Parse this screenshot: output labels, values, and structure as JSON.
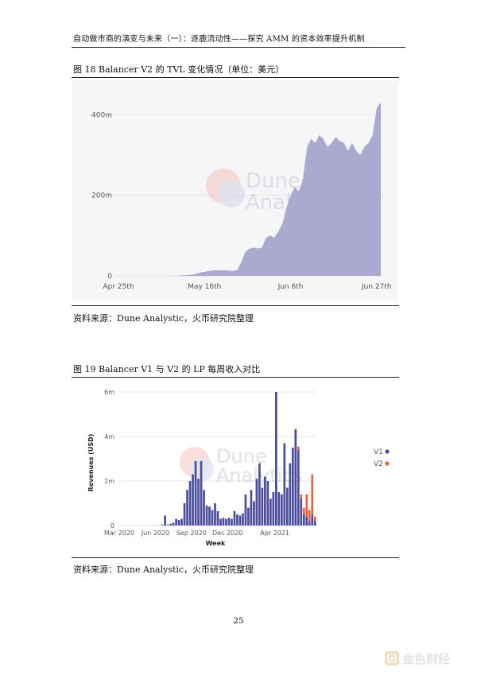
{
  "header": {
    "running_title": "自动做市商的演变与未来（一）：逐鹿流动性——探究 AMM 的资本效率提升机制"
  },
  "figure18": {
    "caption": "图  18   Balancer V2 的 TVL 变化情况（单位：美元）",
    "watermark_line1": "Dune",
    "watermark_line2": "Analytics",
    "source": "资料来源：Dune Analystic，火币研究院整理",
    "fill_color": "#a9aacd",
    "chart_data": {
      "type": "area",
      "title": "",
      "xlabel": "",
      "ylabel": "",
      "ylim": [
        0,
        450000000
      ],
      "x_tick_labels": [
        "Apr 25th",
        "May 16th",
        "Jun 6th",
        "Jun 27th"
      ],
      "x_ticks_day": [
        0,
        21,
        42,
        63
      ],
      "y_ticks": [
        0,
        200000000,
        400000000
      ],
      "y_tick_labels": [
        "0",
        "200m",
        "400m"
      ],
      "x_day": [
        0,
        8,
        14,
        18,
        20,
        22,
        24,
        26,
        28,
        29,
        30,
        31,
        32,
        33,
        34,
        35,
        36,
        37,
        38,
        39,
        40,
        41,
        42,
        43,
        44,
        45,
        46,
        47,
        48,
        49,
        50,
        51,
        52,
        53,
        54,
        55,
        56,
        57,
        58,
        59,
        60,
        61,
        62,
        63,
        63.5,
        64
      ],
      "values": [
        0,
        0,
        0,
        3000000,
        8000000,
        12000000,
        14000000,
        14000000,
        12000000,
        15000000,
        35000000,
        60000000,
        68000000,
        70000000,
        68000000,
        70000000,
        95000000,
        100000000,
        95000000,
        110000000,
        130000000,
        170000000,
        200000000,
        220000000,
        210000000,
        240000000,
        320000000,
        340000000,
        330000000,
        350000000,
        340000000,
        320000000,
        330000000,
        345000000,
        335000000,
        330000000,
        310000000,
        330000000,
        310000000,
        300000000,
        320000000,
        330000000,
        350000000,
        415000000,
        425000000,
        430000000
      ]
    }
  },
  "figure19": {
    "caption": "图  19   Balancer V1 与 V2 的 LP 每周收入对比",
    "watermark_line1": "Dune",
    "watermark_line2": "Analytics",
    "source": "资料来源：Dune Analystic，火币研究院整理",
    "legend": [
      {
        "name": "V1",
        "color": "#4a4c9c"
      },
      {
        "name": "V2",
        "color": "#e8603c"
      }
    ],
    "chart_data": {
      "type": "bar",
      "title": "",
      "xlabel": "Week",
      "ylabel": "Revenues (USD)",
      "ylim": [
        0,
        6000000
      ],
      "y_ticks": [
        0,
        2000000,
        4000000,
        6000000
      ],
      "y_tick_labels": [
        "0",
        "2m",
        "4m",
        "6m"
      ],
      "x_tick_labels": [
        "Mar 2020",
        "Jun 2020",
        "Sep 2020",
        "Dec 2020",
        "Apr 2021"
      ],
      "x_ticks_week": [
        0,
        13,
        26,
        39,
        56
      ],
      "series": [
        {
          "name": "V1",
          "values": [
            0,
            0,
            0,
            0,
            0,
            0,
            0,
            0,
            0,
            0,
            0,
            0,
            0,
            0,
            0,
            40000,
            450000,
            40000,
            80000,
            120000,
            300000,
            250000,
            300000,
            1000000,
            1600000,
            2000000,
            2300000,
            2900000,
            2100000,
            2900000,
            1600000,
            900000,
            850000,
            700000,
            1000000,
            650000,
            300000,
            350000,
            300000,
            350000,
            300000,
            650000,
            500000,
            450000,
            550000,
            1400000,
            800000,
            1600000,
            1100000,
            2100000,
            2800000,
            1700000,
            2200000,
            2000000,
            1200000,
            1500000,
            6000000,
            1500000,
            1400000,
            3700000,
            1700000,
            2800000,
            3500000,
            4300000,
            3400000,
            1200000,
            500000,
            400000,
            200000,
            500000,
            200000
          ]
        },
        {
          "name": "V2",
          "values": [
            0,
            0,
            0,
            0,
            0,
            0,
            0,
            0,
            0,
            0,
            0,
            0,
            0,
            0,
            0,
            0,
            0,
            0,
            0,
            0,
            0,
            0,
            0,
            0,
            0,
            0,
            0,
            0,
            0,
            0,
            0,
            0,
            0,
            0,
            0,
            0,
            0,
            0,
            0,
            0,
            0,
            0,
            0,
            0,
            0,
            0,
            0,
            0,
            0,
            0,
            0,
            0,
            0,
            0,
            0,
            0,
            0,
            0,
            0,
            0,
            0,
            0,
            0,
            50000,
            150000,
            200000,
            300000,
            1000000,
            500000,
            1800000,
            200000
          ]
        }
      ]
    }
  },
  "page_number": "25",
  "watermark_logo_text": "金色财经"
}
